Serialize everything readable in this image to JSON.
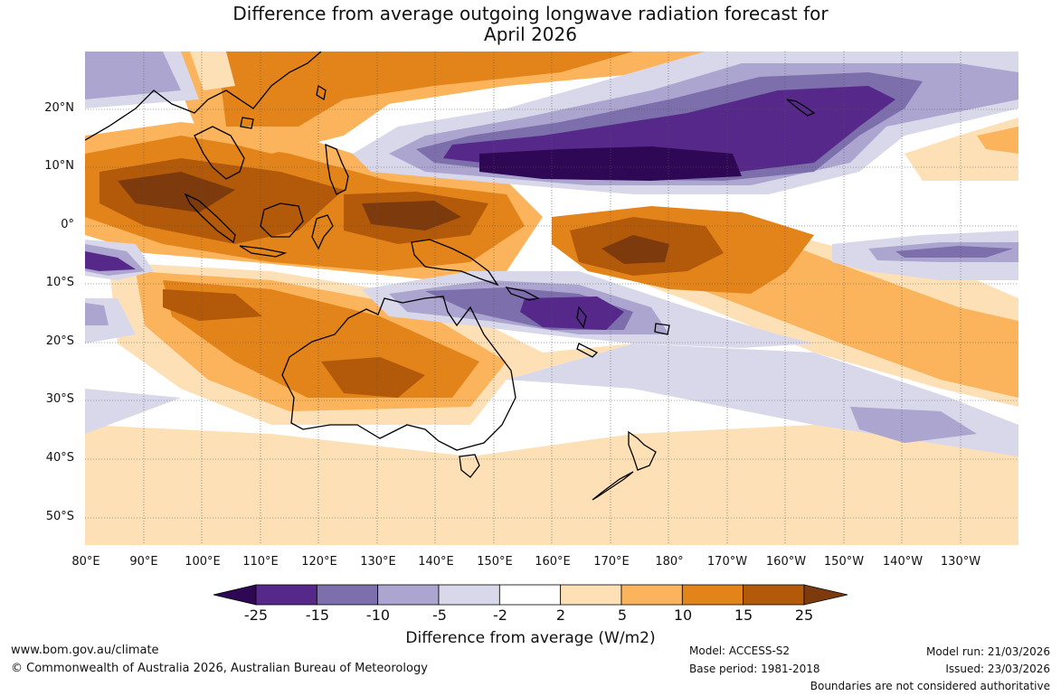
{
  "title": {
    "line1": "Difference from average outgoing longwave radiation forecast for",
    "line2": "April 2026"
  },
  "map": {
    "lat_labels": [
      "20°N",
      "10°N",
      "0°",
      "10°S",
      "20°S",
      "30°S",
      "40°S",
      "50°S"
    ],
    "lon_labels": [
      "80°E",
      "90°E",
      "100°E",
      "110°E",
      "120°E",
      "130°E",
      "140°E",
      "150°E",
      "160°E",
      "170°E",
      "180°",
      "170°W",
      "160°W",
      "150°W",
      "140°W",
      "130°W"
    ]
  },
  "colorbar": {
    "ticks": [
      "-25",
      "-15",
      "-10",
      "-5",
      "-2",
      "2",
      "5",
      "10",
      "15",
      "25"
    ],
    "title": "Difference from average (W/m2)",
    "colors": [
      "#2e0854",
      "#56288a",
      "#7d6eac",
      "#aba5cf",
      "#d9d8ea",
      "#ffffff",
      "#fde0b6",
      "#fbb35c",
      "#e3841b",
      "#b3590a",
      "#7d3a0c"
    ]
  },
  "footer": {
    "website": "www.bom.gov.au/climate",
    "copyright": "© Commonwealth of Australia 2026, Australian Bureau of Meteorology",
    "model": "Model: ACCESS-S2",
    "base_period": "Base period: 1981-2018",
    "model_run": "Model run: 21/03/2026",
    "issued": "Issued: 23/03/2026",
    "disclaimer": "Boundaries are not considered authoritative"
  }
}
